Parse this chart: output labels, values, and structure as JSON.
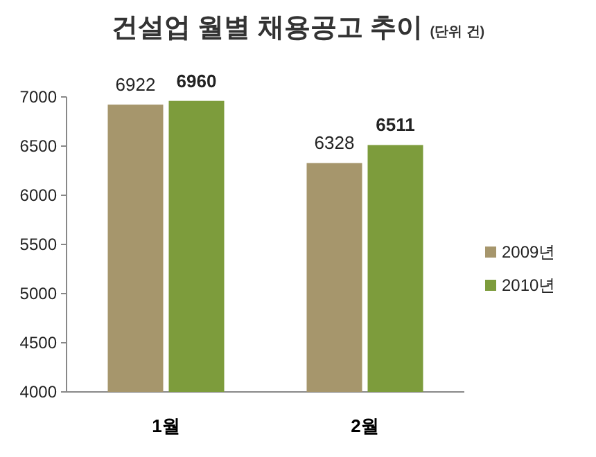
{
  "chart_data": {
    "type": "bar",
    "title": "건설업 월별 채용공고 추이",
    "subtitle": "(단위 건)",
    "categories": [
      "1월",
      "2월"
    ],
    "series": [
      {
        "name": "2009년",
        "color": "#a6966c",
        "values": [
          6922,
          6328
        ]
      },
      {
        "name": "2010년",
        "color": "#7d9c3c",
        "values": [
          6960,
          6511
        ]
      }
    ],
    "ylim": [
      4000,
      7000
    ],
    "yticks": [
      4000,
      4500,
      5000,
      5500,
      6000,
      6500,
      7000
    ],
    "data_labels": true,
    "legend": "right",
    "grid": false
  }
}
